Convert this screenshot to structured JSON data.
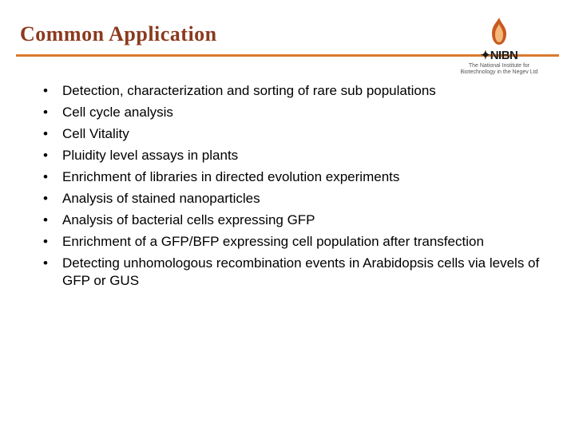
{
  "slide": {
    "title": "Common Application",
    "title_color": "#8b3a1e",
    "title_fontsize": 26,
    "divider_color": "#d97b2e",
    "divider_width": 3,
    "background_color": "#ffffff",
    "bullets": [
      "Detection, characterization and sorting of rare sub populations",
      "Cell cycle analysis",
      "Cell Vitality",
      "Pluidity level assays in plants",
      "Enrichment of libraries in directed evolution experiments",
      "Analysis of stained nanoparticles",
      "Analysis of bacterial cells expressing GFP",
      "Enrichment  of a GFP/BFP expressing cell population after transfection",
      "Detecting unhomologous recombination events in Arabidopsis cells via levels of GFP or GUS"
    ],
    "bullet_color": "#000000",
    "bullet_fontsize": 17,
    "bullet_line_height": 1.35
  },
  "logo": {
    "flame_outer_color": "#c75a1f",
    "flame_inner_color": "#f5b77a",
    "main_text": "NIBN",
    "main_text_prefix_glyph": "✦",
    "main_text_color": "#1a1a1a",
    "main_text_fontsize": 15,
    "sub_text_line1": "The National Institute for",
    "sub_text_line2": "Biotechnology in the Negev Ltd",
    "sub_text_color": "#555555",
    "sub_text_fontsize": 7
  }
}
